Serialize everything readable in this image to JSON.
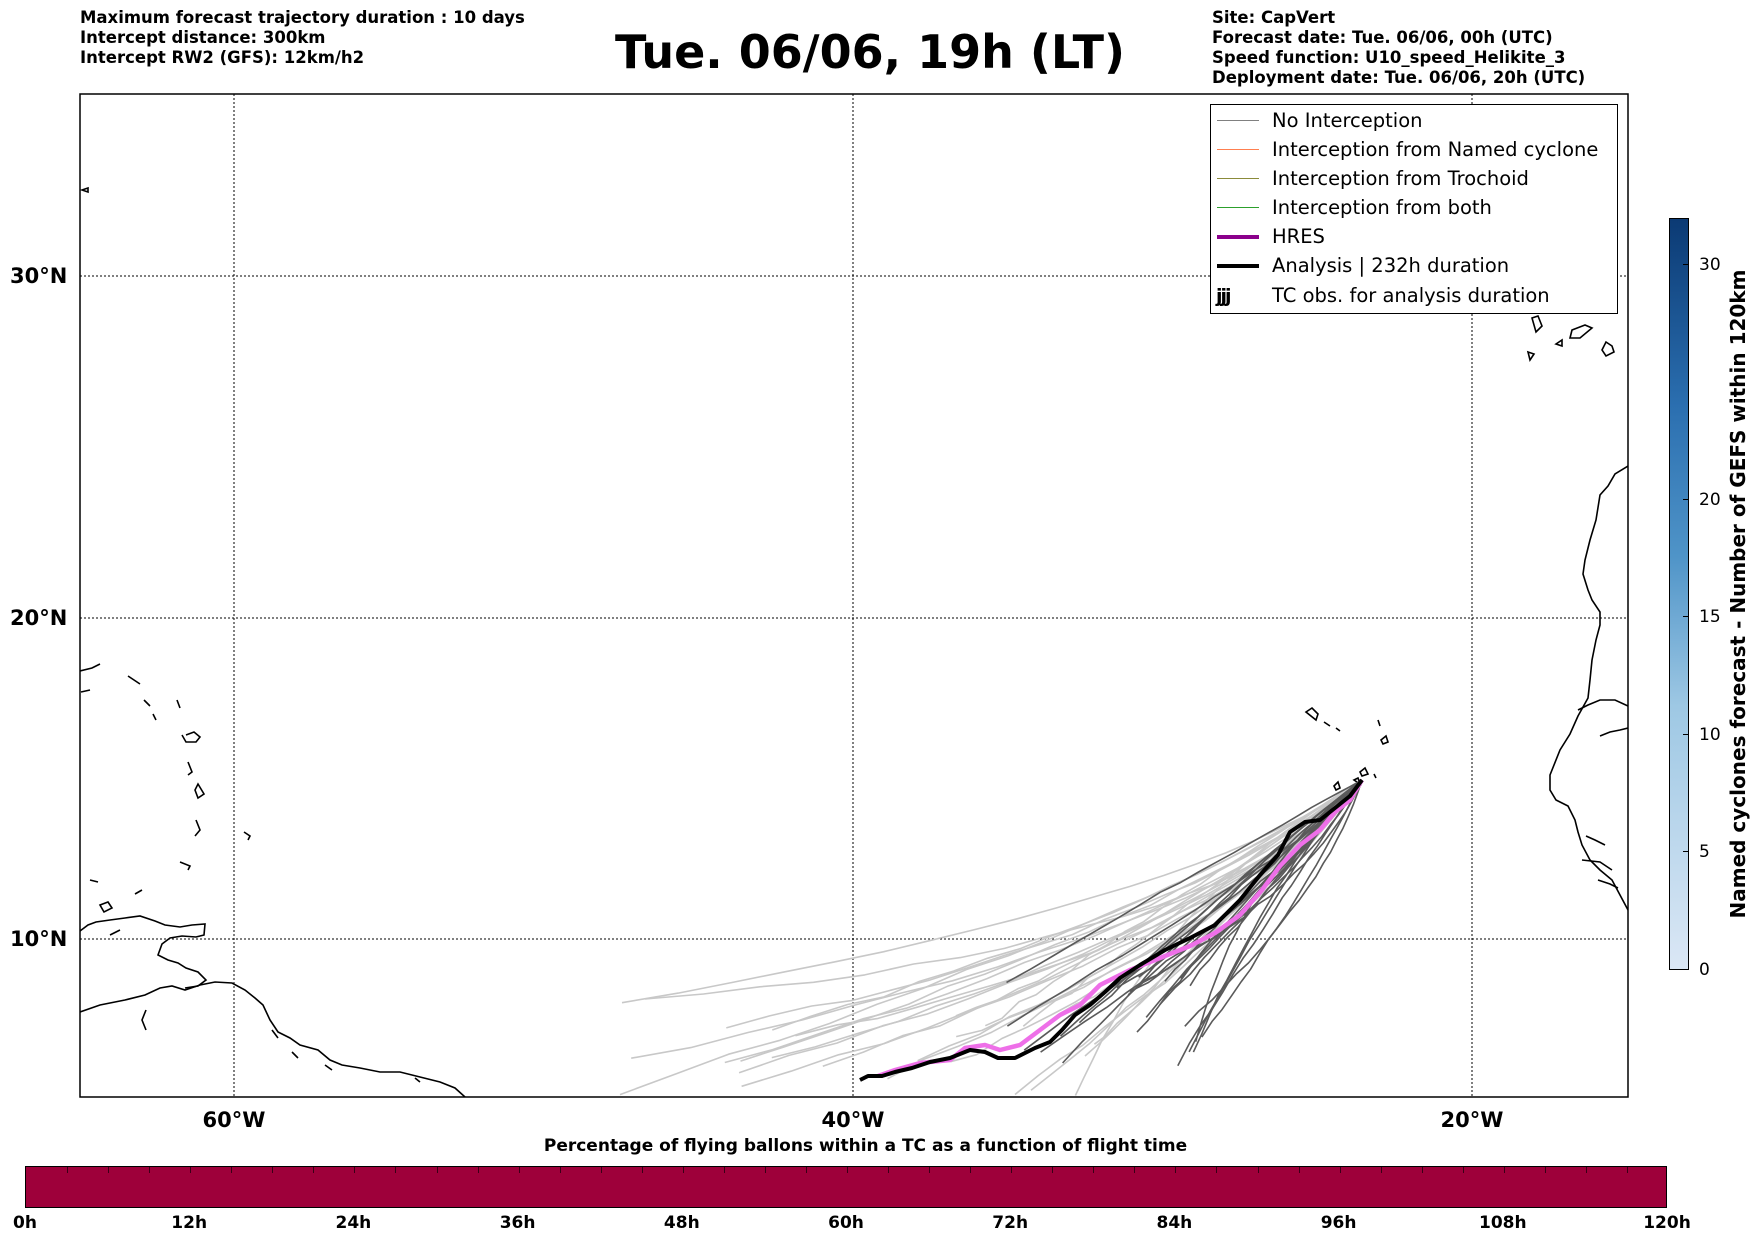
{
  "header": {
    "title": "Tue. 06/06, 19h (LT)",
    "left_lines": [
      "Maximum forecast trajectory duration : 10 days",
      "Intercept distance: 300km",
      "Intercept RW2 (GFS):  12km/h2"
    ],
    "right_lines": [
      "Site: CapVert",
      "Forecast date: Tue. 06/06, 00h (UTC)",
      "Speed function: U10_speed_Helikite_3",
      "Deployment date: Tue. 06/06, 20h (UTC)"
    ]
  },
  "map": {
    "lon_range": [
      -65,
      15
    ],
    "lat_range": [
      5.4,
      34.6
    ],
    "lat_labels": [
      "30°N",
      "20°N",
      "10°N"
    ],
    "lon_labels": [
      "60°W",
      "40°W",
      "20°W"
    ],
    "grid": true
  },
  "legend": {
    "items": [
      {
        "label": "No Interception",
        "color": "#808080",
        "style": "thin"
      },
      {
        "label": "Interception from Named cyclone",
        "color": "#ff7f50",
        "style": "thin"
      },
      {
        "label": "Interception from Trochoid",
        "color": "#8b8b3a",
        "style": "thin"
      },
      {
        "label": "Interception from both",
        "color": "#2ca02c",
        "style": "thin"
      },
      {
        "label": "HRES",
        "color": "#8b008b",
        "style": "thick"
      },
      {
        "label": "Analysis | 232h duration",
        "color": "#000000",
        "style": "thick"
      },
      {
        "label": "TC obs. for analysis duration",
        "icon": "cyclone-symbols"
      }
    ]
  },
  "colorbar_vertical": {
    "label": "Named cyclones forecast - Number of GEFS within 120km",
    "ticks": [
      "0",
      "5",
      "10",
      "15",
      "20",
      "30"
    ],
    "range": [
      0,
      32
    ],
    "color_low": "#dbe7f5",
    "color_high": "#0b3a74"
  },
  "colorbar_horizontal": {
    "title": "Percentage of flying ballons within a TC as a function of flight time",
    "ticks": [
      "0h",
      "12h",
      "24h",
      "36h",
      "48h",
      "60h",
      "72h",
      "84h",
      "96h",
      "108h",
      "120h"
    ],
    "fill_color": "#9e003a"
  },
  "colors": {
    "hres": "#ee6fe8",
    "hres_dark": "#8b008b",
    "analysis": "#000000",
    "ensemble_near": "#5a5a5a",
    "ensemble_far": "#c8c8c8"
  }
}
